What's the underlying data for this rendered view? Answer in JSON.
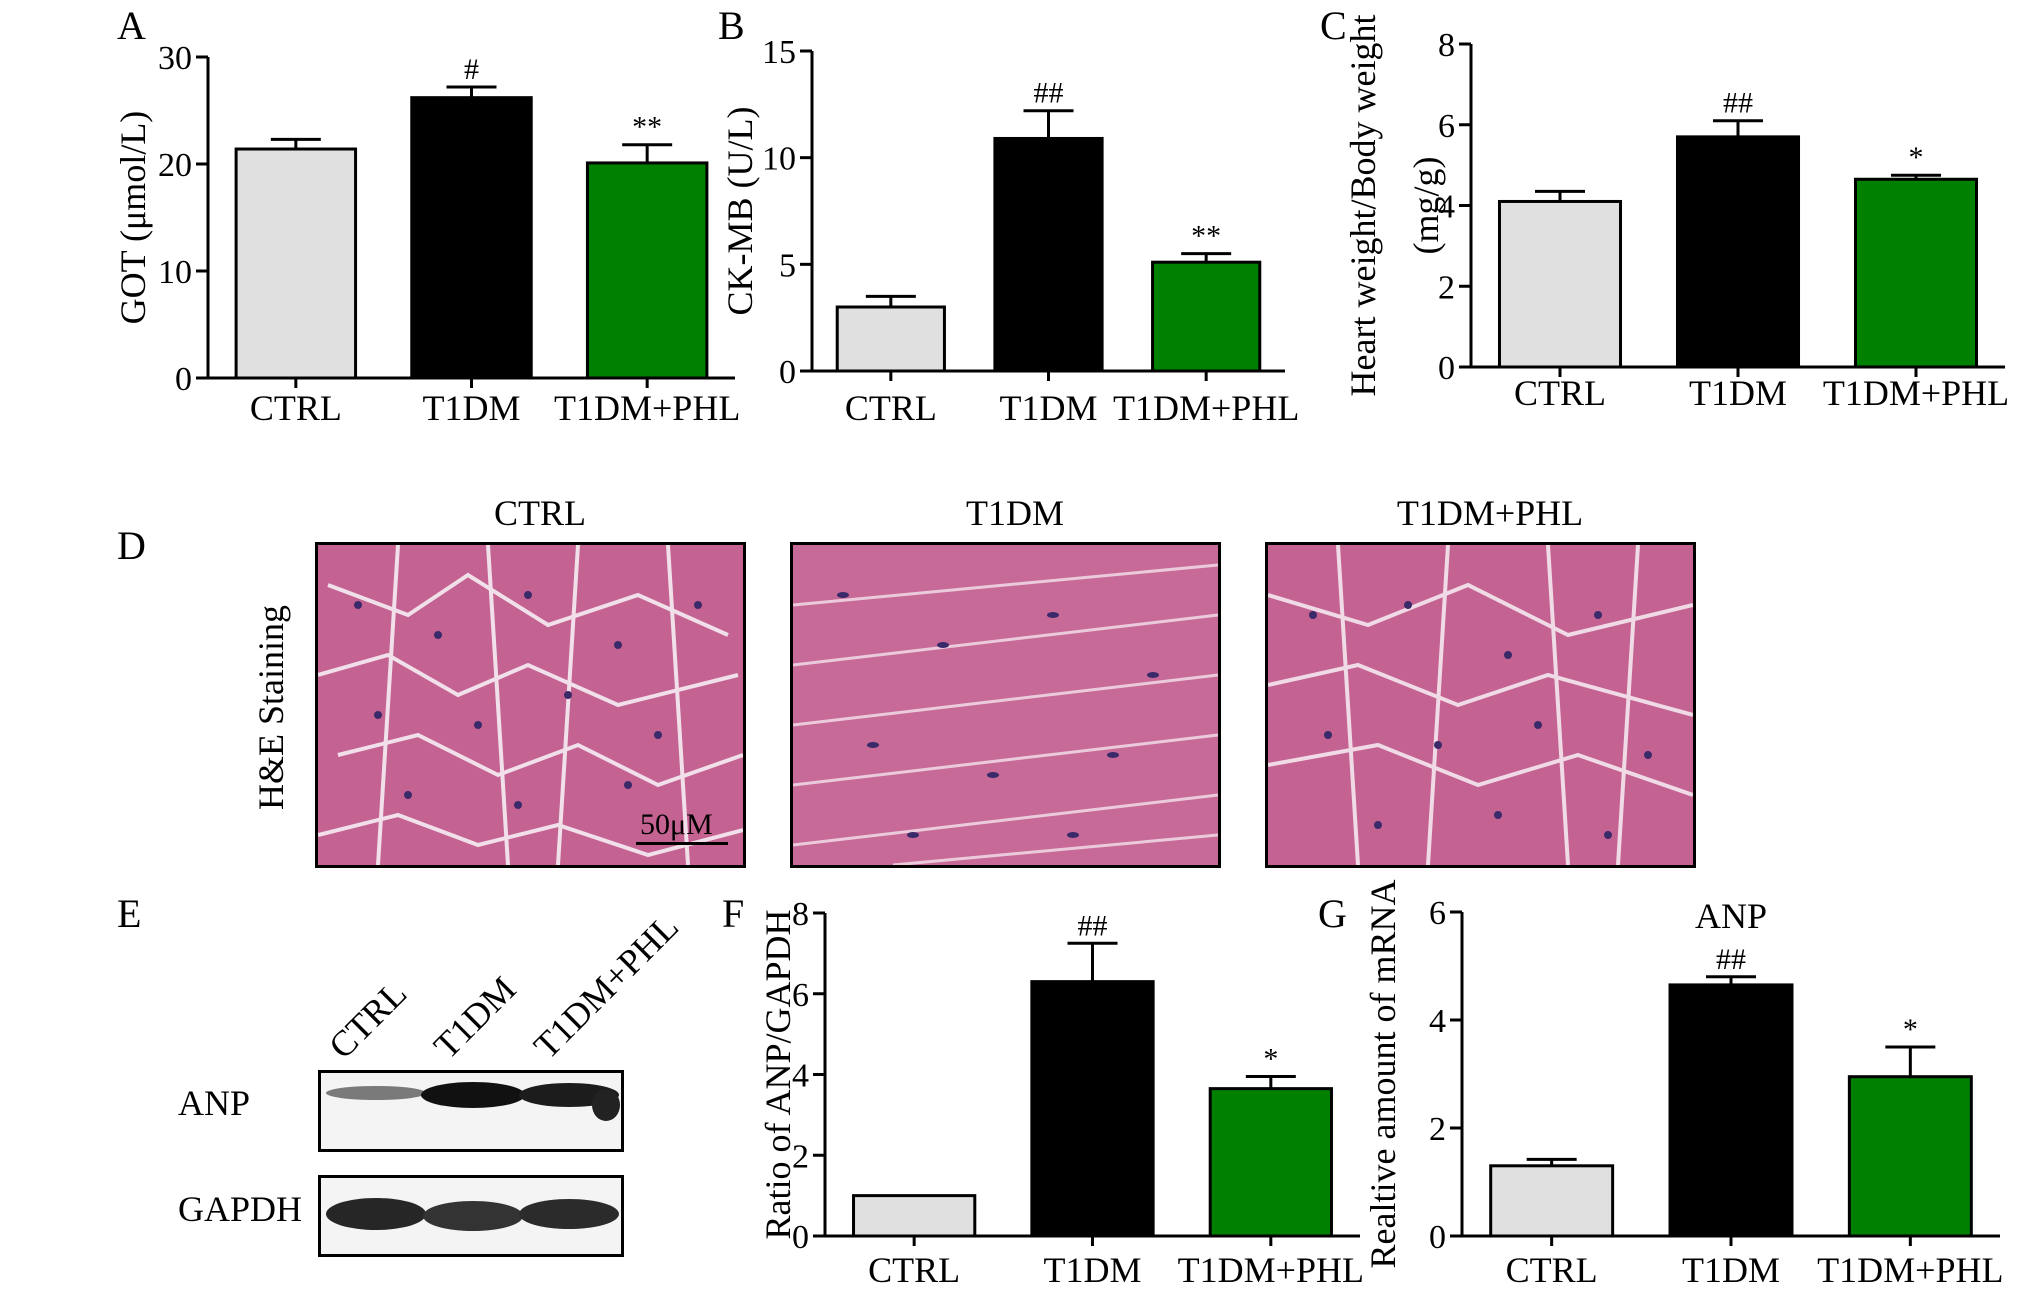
{
  "panel_letters": {
    "A": "A",
    "B": "B",
    "C": "C",
    "D": "D",
    "E": "E",
    "F": "F",
    "G": "G"
  },
  "colors": {
    "ctrl": "#e0e0e0",
    "t1dm": "#000000",
    "phl": "#008000"
  },
  "chart_data": [
    {
      "id": "A",
      "type": "bar",
      "categories": [
        "CTRL",
        "T1DM",
        "T1DM+PHL"
      ],
      "values": [
        21.4,
        26.2,
        20.1
      ],
      "errors": [
        0.9,
        1.0,
        1.7
      ],
      "annotations": [
        "",
        "#",
        "**"
      ],
      "title": "",
      "xlabel": "",
      "ylabel": "GOT (μmol/L)",
      "ylim": [
        0,
        30
      ],
      "yticks": [
        0,
        10,
        20,
        30
      ]
    },
    {
      "id": "B",
      "type": "bar",
      "categories": [
        "CTRL",
        "T1DM",
        "T1DM+PHL"
      ],
      "values": [
        3.0,
        10.9,
        5.1
      ],
      "errors": [
        0.5,
        1.3,
        0.4
      ],
      "annotations": [
        "",
        "##",
        "**"
      ],
      "title": "",
      "xlabel": "",
      "ylabel": "CK-MB (U/L)",
      "ylim": [
        0,
        15
      ],
      "yticks": [
        0,
        5,
        10,
        15
      ]
    },
    {
      "id": "C",
      "type": "bar",
      "categories": [
        "CTRL",
        "T1DM",
        "T1DM+PHL"
      ],
      "values": [
        4.1,
        5.7,
        4.65
      ],
      "errors": [
        0.25,
        0.4,
        0.1
      ],
      "annotations": [
        "",
        "##",
        "*"
      ],
      "title": "",
      "xlabel": "",
      "ylabel": "Heart weight/Body weight",
      "ylabel2": "(mg/g)",
      "ylim": [
        0,
        8
      ],
      "yticks": [
        0,
        2,
        4,
        6,
        8
      ]
    },
    {
      "id": "F",
      "type": "bar",
      "categories": [
        "CTRL",
        "T1DM",
        "T1DM+PHL"
      ],
      "values": [
        1.0,
        6.3,
        3.65
      ],
      "errors": [
        0.0,
        0.95,
        0.3
      ],
      "annotations": [
        "",
        "##",
        "*"
      ],
      "title": "",
      "xlabel": "",
      "ylabel": "Ratio of ANP/GAPDH",
      "ylim": [
        0,
        8
      ],
      "yticks": [
        0,
        2,
        4,
        6,
        8
      ]
    },
    {
      "id": "G",
      "type": "bar",
      "categories": [
        "CTRL",
        "T1DM",
        "T1DM+PHL"
      ],
      "values": [
        1.3,
        4.65,
        2.95
      ],
      "errors": [
        0.12,
        0.15,
        0.55
      ],
      "annotations": [
        "",
        "##",
        "*"
      ],
      "title": "ANP",
      "xlabel": "",
      "ylabel": "Realtive amount of mRNA",
      "ylim": [
        0,
        6
      ],
      "yticks": [
        0,
        2,
        4,
        6
      ]
    }
  ],
  "histology": {
    "groups": [
      "CTRL",
      "T1DM",
      "T1DM+PHL"
    ],
    "stain_label": "H&E Staining",
    "scale_bar": "50μM"
  },
  "western_blot": {
    "lanes": [
      "CTRL",
      "T1DM",
      "T1DM+PHL"
    ],
    "proteins": [
      "ANP",
      "GAPDH"
    ]
  }
}
